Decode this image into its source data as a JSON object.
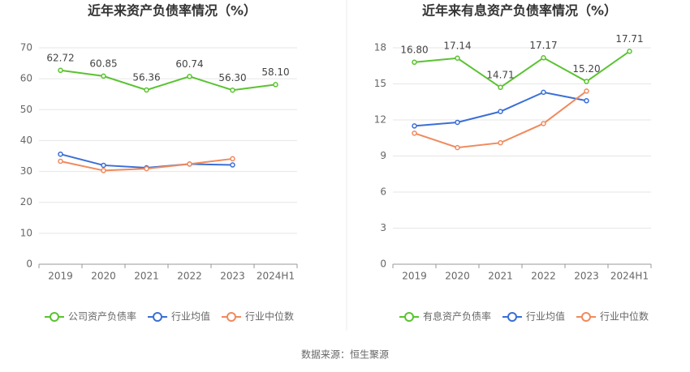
{
  "chart_data": [
    {
      "type": "line",
      "title": "近年来资产负债率情况（%）",
      "categories": [
        "2019",
        "2020",
        "2021",
        "2022",
        "2023",
        "2024H1"
      ],
      "series": [
        {
          "name": "公司资产负债率",
          "color": "#5ac330",
          "values": [
            62.72,
            60.85,
            56.36,
            60.74,
            56.3,
            58.1
          ],
          "value_labels": [
            "62.72",
            "60.85",
            "56.36",
            "60.74",
            "56.30",
            "58.10"
          ]
        },
        {
          "name": "行业均值",
          "color": "#3a6fd6",
          "values": [
            35.6,
            32.0,
            31.2,
            32.4,
            32.1,
            null
          ]
        },
        {
          "name": "行业中位数",
          "color": "#f08a5d",
          "values": [
            33.3,
            30.3,
            30.9,
            32.4,
            34.1,
            null
          ]
        }
      ],
      "ylim": [
        0,
        70
      ],
      "yticks": [
        0,
        10,
        20,
        30,
        40,
        50,
        60,
        70
      ],
      "grid": true
    },
    {
      "type": "line",
      "title": "近年来有息资产负债率情况（%）",
      "categories": [
        "2019",
        "2020",
        "2021",
        "2022",
        "2023",
        "2024H1"
      ],
      "series": [
        {
          "name": "有息资产负债率",
          "color": "#5ac330",
          "values": [
            16.8,
            17.14,
            14.71,
            17.17,
            15.2,
            17.71
          ],
          "value_labels": [
            "16.80",
            "17.14",
            "14.71",
            "17.17",
            "15.20",
            "17.71"
          ]
        },
        {
          "name": "行业均值",
          "color": "#3a6fd6",
          "values": [
            11.5,
            11.8,
            12.7,
            14.3,
            13.6,
            null
          ]
        },
        {
          "name": "行业中位数",
          "color": "#f08a5d",
          "values": [
            10.9,
            9.7,
            10.1,
            11.7,
            14.4,
            null
          ]
        }
      ],
      "ylim": [
        0,
        18
      ],
      "yticks": [
        0,
        3,
        6,
        9,
        12,
        15,
        18
      ],
      "grid": true
    }
  ],
  "footer": "数据来源：恒生聚源"
}
